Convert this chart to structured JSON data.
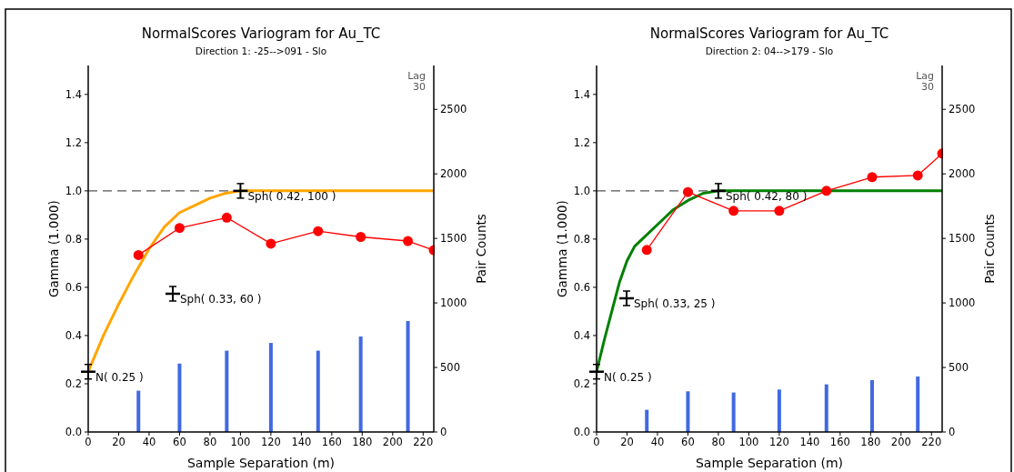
{
  "chart_data": [
    {
      "type": "line",
      "title": "NormalScores  Variogram for Au_TC",
      "subtitle": "Direction 1: -25-->091 - Slo",
      "xlabel": "Sample Separation (m)",
      "ylabel": "Gamma (1.000)",
      "y2label": "Pair Counts",
      "xlim": [
        0,
        227
      ],
      "xticks": [
        0,
        20,
        40,
        60,
        80,
        100,
        120,
        140,
        160,
        180,
        200,
        220
      ],
      "ylim": [
        0,
        1.52
      ],
      "yticks": [
        {
          "value": 0,
          "label": "0.0"
        },
        {
          "value": 0.2,
          "label": "0.2"
        },
        {
          "value": 0.4,
          "label": "0.4"
        },
        {
          "value": 0.6,
          "label": "0.6"
        },
        {
          "value": 0.8,
          "label": "0.8"
        },
        {
          "value": 1,
          "label": "1.0"
        },
        {
          "value": 1.2,
          "label": "1.2"
        },
        {
          "value": 1.4,
          "label": "1.4"
        }
      ],
      "y2lim": [
        0,
        2840
      ],
      "y2ticks": [
        0,
        500,
        1000,
        1500,
        2000,
        2500
      ],
      "ref_lines": [
        {
          "axis": "y",
          "value": 1,
          "color": "#555555",
          "line_style": "dashed"
        }
      ],
      "series": [
        {
          "type": "bar",
          "axis": "y2",
          "color": "#4169e1",
          "x": [
            33,
            60,
            91,
            120,
            151,
            179,
            210
          ],
          "values": [
            320,
            530,
            630,
            690,
            630,
            740,
            860
          ]
        },
        {
          "color": "#ffa500",
          "marker": "none",
          "x": [
            0,
            10,
            20,
            30,
            40,
            50,
            60,
            70,
            80,
            90,
            100,
            227
          ],
          "values": [
            0.25,
            0.4,
            0.53,
            0.65,
            0.76,
            0.85,
            0.91,
            0.94,
            0.97,
            0.99,
            1.0,
            1.0
          ]
        },
        {
          "color": "#ff0000",
          "marker": "circle",
          "x": [
            33,
            60,
            91,
            120,
            151,
            179,
            210,
            227
          ],
          "values": [
            0.734,
            0.846,
            0.889,
            0.781,
            0.833,
            0.809,
            0.792,
            0.754
          ]
        }
      ],
      "annotations": [
        {
          "text": "N( 0.25 )",
          "x": 0,
          "y": 0.25
        },
        "Sph( 0.33, 60 )",
        {
          "text": "Sph( 0.42, 100 )",
          "x": 100,
          "y": 1.0
        },
        "Lag 30"
      ]
    },
    {
      "type": "line",
      "title": "NormalScores  Variogram for Au_TC",
      "subtitle": "Direction 2: 04-->179 - Slo",
      "xlabel": "Sample Separation (m)",
      "ylabel": "Gamma (1.000)",
      "y2label": "Pair Counts",
      "xlim": [
        0,
        227
      ],
      "xticks": [
        0,
        20,
        40,
        60,
        80,
        100,
        120,
        140,
        160,
        180,
        200,
        220
      ],
      "ylim": [
        0,
        1.52
      ],
      "yticks": [
        {
          "value": 0,
          "label": "0.0"
        },
        {
          "value": 0.2,
          "label": "0.2"
        },
        {
          "value": 0.4,
          "label": "0.4"
        },
        {
          "value": 0.6,
          "label": "0.6"
        },
        {
          "value": 0.8,
          "label": "0.8"
        },
        {
          "value": 1,
          "label": "1.0"
        },
        {
          "value": 1.2,
          "label": "1.2"
        },
        {
          "value": 1.4,
          "label": "1.4"
        }
      ],
      "y2lim": [
        0,
        2840
      ],
      "y2ticks": [
        0,
        500,
        1000,
        1500,
        2000,
        2500
      ],
      "ref_lines": [
        {
          "axis": "y",
          "value": 1,
          "color": "#555555",
          "line_style": "dashed"
        }
      ],
      "series": [
        {
          "type": "bar",
          "axis": "y2",
          "color": "#4169e1",
          "x": [
            33,
            60,
            90,
            120,
            151,
            181,
            211
          ],
          "values": [
            172,
            315,
            306,
            329,
            369,
            402,
            430
          ]
        },
        {
          "color": "#008000",
          "marker": "none",
          "x": [
            0,
            5,
            10,
            15,
            20,
            25,
            30,
            40,
            50,
            60,
            70,
            80,
            227
          ],
          "values": [
            0.25,
            0.38,
            0.5,
            0.62,
            0.71,
            0.77,
            0.8,
            0.86,
            0.92,
            0.96,
            0.99,
            1.0,
            1.0
          ]
        },
        {
          "color": "#ff0000",
          "marker": "circle",
          "x": [
            33,
            60,
            90,
            120,
            151,
            181,
            211,
            227
          ],
          "values": [
            0.755,
            0.995,
            0.917,
            0.917,
            1.0,
            1.057,
            1.064,
            1.155
          ]
        }
      ],
      "annotations": [
        {
          "text": "N( 0.25 )",
          "x": 0,
          "y": 0.25
        },
        "Sph( 0.33, 25 )",
        {
          "text": "Sph( 0.42, 80 )",
          "x": 80,
          "y": 1.0
        },
        "Lag 30"
      ]
    }
  ]
}
